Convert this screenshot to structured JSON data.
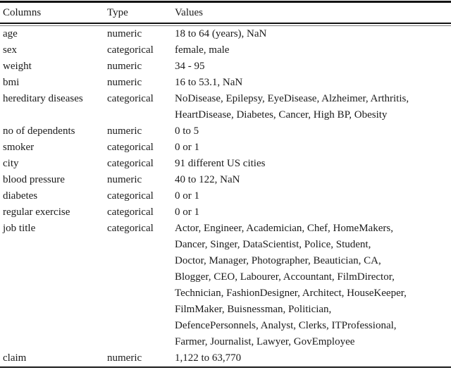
{
  "meta": {
    "description": "Dataset columns description table",
    "colors": {
      "background": "#ffffff",
      "text": "#1b1b1b",
      "rule": "#121212"
    }
  },
  "table": {
    "headers": {
      "column": "Columns",
      "type": "Type",
      "values": "Values"
    },
    "rows": [
      {
        "column": "age",
        "type": "numeric",
        "values": [
          "18 to 64 (years), NaN"
        ]
      },
      {
        "column": "sex",
        "type": "categorical",
        "values": [
          "female, male"
        ]
      },
      {
        "column": "weight",
        "type": "numeric",
        "values": [
          "34 - 95"
        ]
      },
      {
        "column": "bmi",
        "type": "numeric",
        "values": [
          "16 to 53.1, NaN"
        ]
      },
      {
        "column": "hereditary diseases",
        "type": "categorical",
        "values": [
          "NoDisease, Epilepsy, EyeDisease, Alzheimer, Arthritis,",
          "HeartDisease, Diabetes, Cancer, High BP, Obesity"
        ]
      },
      {
        "column": "no of dependents",
        "type": "numeric",
        "values": [
          "0 to 5"
        ]
      },
      {
        "column": "smoker",
        "type": "categorical",
        "values": [
          "0 or 1"
        ]
      },
      {
        "column": "city",
        "type": "categorical",
        "values": [
          "91 different US cities"
        ]
      },
      {
        "column": "blood pressure",
        "type": "numeric",
        "values": [
          "40 to 122, NaN"
        ]
      },
      {
        "column": "diabetes",
        "type": "categorical",
        "values": [
          "0 or 1"
        ]
      },
      {
        "column": "regular exercise",
        "type": "categorical",
        "values": [
          "0 or 1"
        ]
      },
      {
        "column": "job title",
        "type": "categorical",
        "values": [
          "Actor, Engineer, Academician, Chef, HomeMakers,",
          "Dancer, Singer, DataScientist, Police, Student,",
          "Doctor, Manager, Photographer, Beautician, CA,",
          "Blogger, CEO, Labourer, Accountant, FilmDirector,",
          "Technician, FashionDesigner, Architect, HouseKeeper,",
          "FilmMaker, Buisnessman, Politician,",
          "DefencePersonnels, Analyst, Clerks, ITProfessional,",
          "Farmer, Journalist, Lawyer, GovEmployee"
        ]
      },
      {
        "column": "claim",
        "type": "numeric",
        "values": [
          "1,122 to 63,770"
        ]
      }
    ]
  }
}
